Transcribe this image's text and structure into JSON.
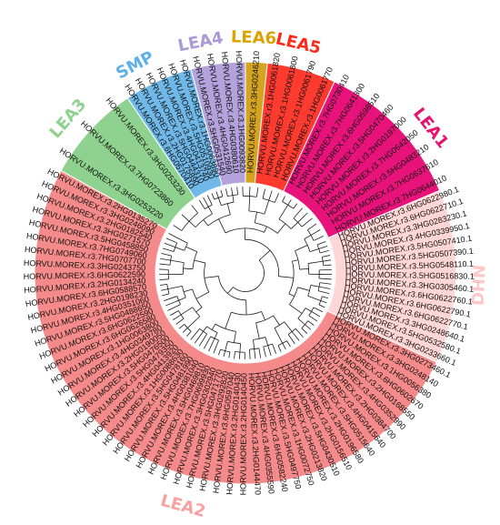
{
  "groups": [
    {
      "name": "LEA3",
      "color": "#8fd18f",
      "label_color": "#8fd18f",
      "leaves": [
        "HORVU.MOREX.r3.3HG0253220",
        "HORVU.MOREX.r3.7HG0723860",
        "HORVU.MOREX.r3.3HG0253230"
      ]
    },
    {
      "name": "SMP",
      "color": "#6fb8e8",
      "label_color": "#5fb0e8",
      "leaves": [
        "HORVU.MOREX.r3.6HG0570410",
        "HORVU.MOREX.r3.2HG0175890",
        "HORVU.MOREX.r3.5HG0444310",
        "HORVU.MOREX.r3.4HG0413740",
        "HORVU.MOREX.r3.5HG0510930",
        "HORVU.MOREX.r3.1HG0063890"
      ]
    },
    {
      "name": "LEA4",
      "color": "#b4a2dc",
      "label_color": "#a99bd6",
      "leaves": [
        "HORVU.MOREX.r3.5HG0531540",
        "HORVU.MOREX.r3.4HG0412690",
        "HORVU.MOREX.r3.4HG0380610",
        "HORVU.MOREX.r3.1HG0093820"
      ]
    },
    {
      "name": "LEA6",
      "color": "#d4a420",
      "label_color": "#d9a400",
      "leaves": [
        "HORVU.MOREX.r3.3HG0246210"
      ]
    },
    {
      "name": "LEA5",
      "color": "#ff3b2f",
      "label_color": "#ff2a1a",
      "leaves": [
        "HORVU.MOREX.r3.1HG0061820",
        "HORVU.MOREX.r3.1HG0061800",
        "HORVU.MOREX.r3.1HG0061790",
        "HORVU.MOREX.r3.1HG0061770"
      ]
    },
    {
      "name": "LEA1",
      "color": "#e8137a",
      "label_color": "#e8136e",
      "leaves": [
        "HORVU.MOREX.r3.7HG0730410",
        "HORVU.MOREX.r3.7HG0641300",
        "HORVU.MOREX.r3.6HG0598510",
        "HORVU.MOREX.r3.5HG0470460",
        "HORVU.MOREX.r3.2HG0197000",
        "HORVU.MOREX.r3.7HG0642050",
        "HORVU.MOREX.r3.5HG0483210",
        "HORVU.MOREX.r3.7HG0637610",
        "HORVU.MOREX.r3.7HG0644010"
      ]
    },
    {
      "name": "DHN",
      "color": "#ffd6d6",
      "label_color": "#ffc8c8",
      "leaves": [
        "HORVU.MOREX.r3.6HG0622980.1",
        "HORVU.MOREX.r3.6HG0622710.1",
        "HORVU.MOREX.r3.3HG0283230.1",
        "HORVU.MOREX.r3.4HG0339950.1",
        "HORVU.MOREX.r3.5HG0507410.1",
        "HORVU.MOREX.r3.5HG0507390.1",
        "HORVU.MOREX.r3.5HG0548110.1",
        "HORVU.MOREX.r3.5HG0516830.1",
        "HORVU.MOREX.r3.3HG0305460.1",
        "HORVU.MOREX.r3.6HG0622760.1",
        "HORVU.MOREX.r3.6HG0622790.1",
        "HORVU.MOREX.r3.6HG0622770.1",
        "HORVU.MOREX.r3.3HG0248640.1",
        "HORVU.MOREX.r3.5HG0532580.1",
        "HORVU.MOREX.r3.3HG0233660.1"
      ]
    },
    {
      "name": "LEA2",
      "color": "#f58a8a",
      "label_color": "#f9a0a0",
      "leaves": [
        "HORVU.MOREX.r3.3HG0273460.1",
        "HORVU.MOREX.r3.3HG0248140",
        "HORVU.MOREX.r3.1HG0056380",
        "HORVU.MOREX.r3.6HG0602670",
        "HORVU.MOREX.r3.2HG0168550",
        "HORVU.MOREX.r3.4HG0352990",
        "HORVU.MOREX.r3.2HG0384700",
        "HORVU.MOREX.r3.4HG0415640",
        "HORVU.MOREX.r3.5HG0515640",
        "HORVU.MOREX.r3.2HG0196580",
        "HORVU.MOREX.r3.2HG0156510",
        "HORVU.MOREX.r3.5HG0430510",
        "HORVU.MOREX.r3.2HG0213820",
        "HORVU.MOREX.r3.1HG0072750",
        "HORVU.MOREX.r3.5HG0497750",
        "HORVU.MOREX.r3.6HG0582240",
        "HORVU.MOREX.r3.4HG0355590",
        "HORVU.MOREX.r3.2HG0144470",
        "HORVU.MOREX.r3.2HG0140450",
        "HORVU.MOREX.r3.2HG0140430",
        "HORVU.MOREX.r3.6HG0597040",
        "HORVU.MOREX.r3.3HG0292820",
        "HORVU.MOREX.r3.5HG0471770",
        "HORVU.MOREX.r3.3HG0302940",
        "HORVU.MOREX.r3.7HG0699930",
        "HORVU.MOREX.r3.5HG0469810",
        "HORVU.MOREX.r3.4HG0381040",
        "HORVU.MOREX.r3.5HG0481990",
        "HORVU.MOREX.r3.5HG0478160",
        "HORVU.MOREX.r3.1HG0088630",
        "HORVU.MOREX.r3.4HG0413920",
        "HORVU.MOREX.r3.5HG0479350",
        "HORVU.MOREX.r3.5HG0476500",
        "HORVU.MOREX.r3.2HG0190050",
        "HORVU.MOREX.r3.4HG0349780",
        "HORVU.MOREX.r3.1HG0063800",
        "HORVU.MOREX.r3.6HG0626580",
        "HORVU.MOREX.r3.6HG0622590",
        "HORVU.MOREX.r3.5HG0488650",
        "HORVU.MOREX.r3.4HG0351060",
        "HORVU.MOREX.r3.2HG0198230",
        "HORVU.MOREX.r3.6HG0588570",
        "HORVU.MOREX.r3.2HG0134240",
        "HORVU.MOREX.r3.6HG0622590",
        "HORVU.MOREX.r3.3HG0243750",
        "HORVU.MOREX.r3.7HG0707700",
        "HORVU.MOREX.r3.7HG0749060",
        "HORVU.MOREX.r3.5HG0458850",
        "HORVU.MOREX.r3.3HG0271570",
        "HORVU.MOREX.r3.2HG0182540",
        "HORVU.MOREX.r3.3HG0246090",
        "HORVU.MOREX.r3.2HG0135270"
      ]
    }
  ],
  "colors": {
    "branch": "#1a1a1a",
    "background": "#ffffff"
  }
}
